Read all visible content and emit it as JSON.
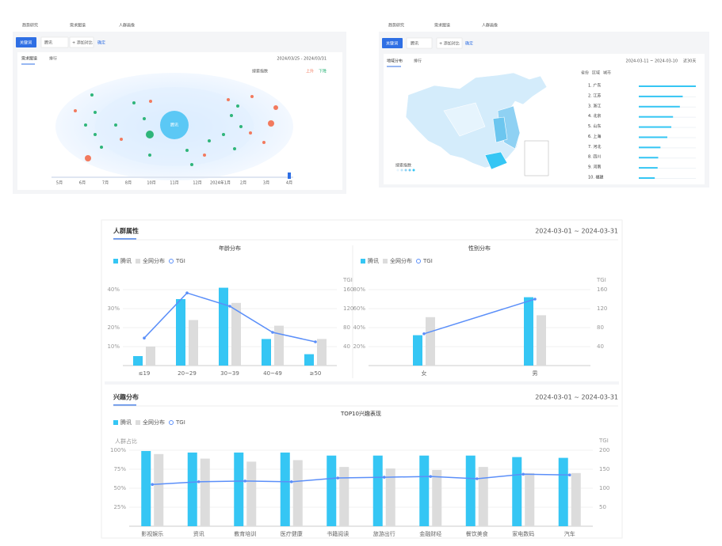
{
  "panels": [
    {
      "tabs": [
        "趋势研究",
        "需求图谱",
        "人群画像"
      ],
      "keyword_button": "关键词",
      "keyword": "腾讯",
      "add": "+ 添加对比",
      "confirm": "确定",
      "subtabs": [
        "需求图谱",
        "排行"
      ],
      "date": "2024/03/25 - 2024/03/31",
      "legend": [
        "搜索指数",
        "上升",
        "下降"
      ],
      "center": "腾讯",
      "timeline": [
        "5月",
        "6月",
        "7月",
        "8月",
        "10月",
        "11月",
        "12月",
        "2024年1月",
        "2月",
        "3月",
        "4月"
      ]
    },
    {
      "tabs": [
        "趋势研究",
        "需求图谱",
        "人群画像"
      ],
      "keyword_button": "关键词",
      "keyword": "腾讯",
      "add": "+ 添加对比",
      "confirm": "确定",
      "subtabs": [
        "地域分布",
        "排行"
      ],
      "date": "2024-03-11 ~ 2024-03-10",
      "range": "近30天",
      "filters": [
        "省份",
        "区域",
        "城市"
      ],
      "map_legend": "搜索指数"
    }
  ],
  "sections": [
    {
      "title": "人群属性",
      "date": "2024-03-01 ~ 2024-03-31"
    },
    {
      "title": "兴趣分布",
      "date": "2024-03-01 ~ 2024-03-31"
    }
  ],
  "chart_data": [
    {
      "type": "bar",
      "title": "年龄分布",
      "categories": [
        "≤19",
        "20~29",
        "30~39",
        "40~49",
        "≥50"
      ],
      "series": [
        {
          "name": "腾讯",
          "color": "#35c6f4",
          "values": [
            5,
            35,
            41,
            14,
            6
          ]
        },
        {
          "name": "全网分布",
          "color": "#dcdcdc",
          "values": [
            10,
            24,
            33,
            21,
            14
          ]
        },
        {
          "name": "TGI",
          "color": "#5b8ff9",
          "type": "line",
          "axis": "y2",
          "values": [
            58,
            153,
            125,
            70,
            50
          ]
        }
      ],
      "ylim": [
        0,
        40
      ],
      "yticks": [
        {
          "value": 10,
          "label": "10%"
        },
        {
          "value": 20,
          "label": "20%"
        },
        {
          "value": 30,
          "label": "30%"
        },
        {
          "value": 40,
          "label": "40%"
        }
      ],
      "y2label": "TGI",
      "y2lim": [
        0,
        160
      ],
      "y2ticks": [
        40,
        80,
        120,
        160
      ],
      "grid": true
    },
    {
      "type": "bar",
      "title": "性别分布",
      "categories": [
        "女",
        "男"
      ],
      "series": [
        {
          "name": "腾讯",
          "color": "#35c6f4",
          "values": [
            32,
            72
          ]
        },
        {
          "name": "全网分布",
          "color": "#dcdcdc",
          "values": [
            51,
            53
          ]
        },
        {
          "name": "TGI",
          "color": "#5b8ff9",
          "type": "line",
          "axis": "y2",
          "values": [
            67,
            140
          ]
        }
      ],
      "ylim": [
        0,
        80
      ],
      "yticks": [
        {
          "value": 20,
          "label": "20%"
        },
        {
          "value": 40,
          "label": "40%"
        },
        {
          "value": 60,
          "label": "60%"
        },
        {
          "value": 80,
          "label": "80%"
        }
      ],
      "y2label": "TGI",
      "y2lim": [
        0,
        160
      ],
      "y2ticks": [
        40,
        80,
        120,
        160
      ],
      "grid": true
    },
    {
      "type": "bar",
      "title": "TOP10兴趣表现",
      "ylabel": "人群占比",
      "categories": [
        "影视娱乐",
        "资讯",
        "教育培训",
        "医疗健康",
        "书籍阅读",
        "旅游出行",
        "金融财经",
        "餐饮美食",
        "家电数码",
        "汽车"
      ],
      "series": [
        {
          "name": "腾讯",
          "color": "#35c6f4",
          "values": [
            99,
            97,
            97,
            97,
            93,
            93,
            93,
            93,
            91,
            90
          ]
        },
        {
          "name": "全网分布",
          "color": "#dcdcdc",
          "values": [
            95,
            89,
            85,
            87,
            78,
            76,
            74,
            78,
            70,
            70
          ]
        },
        {
          "name": "TGI",
          "color": "#5b8ff9",
          "type": "line",
          "axis": "y2",
          "values": [
            110,
            117,
            119,
            117,
            127,
            129,
            131,
            125,
            137,
            135
          ]
        }
      ],
      "ylim": [
        0,
        100
      ],
      "yticks": [
        {
          "value": 25,
          "label": "25%"
        },
        {
          "value": 50,
          "label": "50%"
        },
        {
          "value": 75,
          "label": "75%"
        },
        {
          "value": 100,
          "label": "100%"
        }
      ],
      "y2label": "TGI",
      "y2lim": [
        0,
        200
      ],
      "y2ticks": [
        50,
        100,
        150,
        200
      ],
      "grid": true
    },
    {
      "type": "hbar",
      "categories": [
        "1. 广东",
        "2. 江苏",
        "3. 浙江",
        "4. 北京",
        "5. 山东",
        "6. 上海",
        "7. 河北",
        "8. 四川",
        "9. 河南",
        "10. 福建"
      ],
      "values": [
        100,
        77,
        72,
        60,
        57,
        50,
        38,
        34,
        33,
        28
      ],
      "xlim": [
        0,
        100
      ],
      "color": "#35c6f4"
    }
  ]
}
